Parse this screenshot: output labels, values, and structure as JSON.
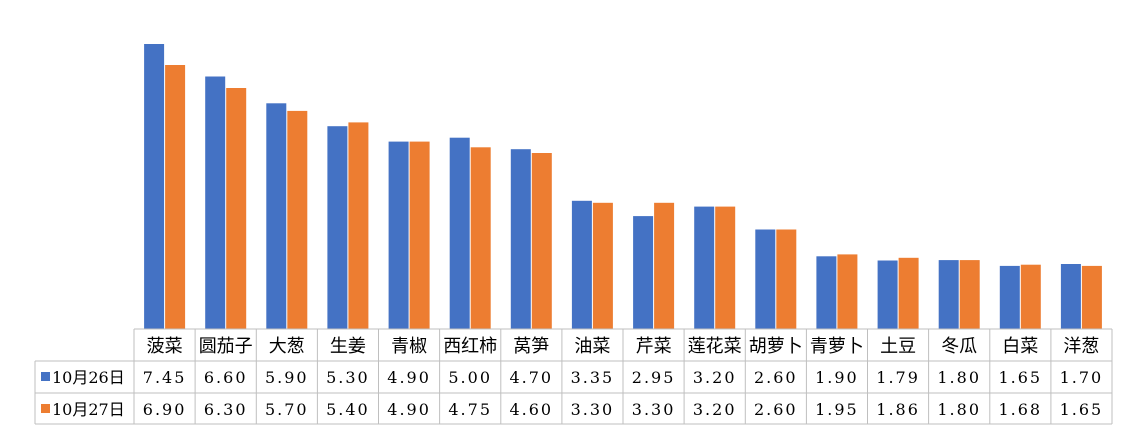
{
  "chart_data": {
    "type": "bar",
    "categories": [
      "菠菜",
      "圆茄子",
      "大葱",
      "生姜",
      "青椒",
      "西红柿",
      "莴笋",
      "油菜",
      "芹菜",
      "莲花菜",
      "胡萝卜",
      "青萝卜",
      "土豆",
      "冬瓜",
      "白菜",
      "洋葱"
    ],
    "series": [
      {
        "name": "10月26日",
        "color": "#4472C4",
        "values": [
          7.45,
          6.6,
          5.9,
          5.3,
          4.9,
          5.0,
          4.7,
          3.35,
          2.95,
          3.2,
          2.6,
          1.9,
          1.79,
          1.8,
          1.65,
          1.7
        ],
        "labels": [
          "7.45",
          "6.60",
          "5.90",
          "5.30",
          "4.90",
          "5.00",
          "4.70",
          "3.35",
          "2.95",
          "3.20",
          "2.60",
          "1.90",
          "1.79",
          "1.80",
          "1.65",
          "1.70"
        ]
      },
      {
        "name": "10月27日",
        "color": "#ED7D31",
        "values": [
          6.9,
          6.3,
          5.7,
          5.4,
          4.9,
          4.75,
          4.6,
          3.3,
          3.3,
          3.2,
          2.6,
          1.95,
          1.86,
          1.8,
          1.68,
          1.65
        ],
        "labels": [
          "6.90",
          "6.30",
          "5.70",
          "5.40",
          "4.90",
          "4.75",
          "4.60",
          "3.30",
          "3.30",
          "3.20",
          "2.60",
          "1.95",
          "1.86",
          "1.80",
          "1.68",
          "1.65"
        ]
      }
    ],
    "ylim": [
      0,
      8
    ],
    "grid": false,
    "legend": "data-table"
  }
}
